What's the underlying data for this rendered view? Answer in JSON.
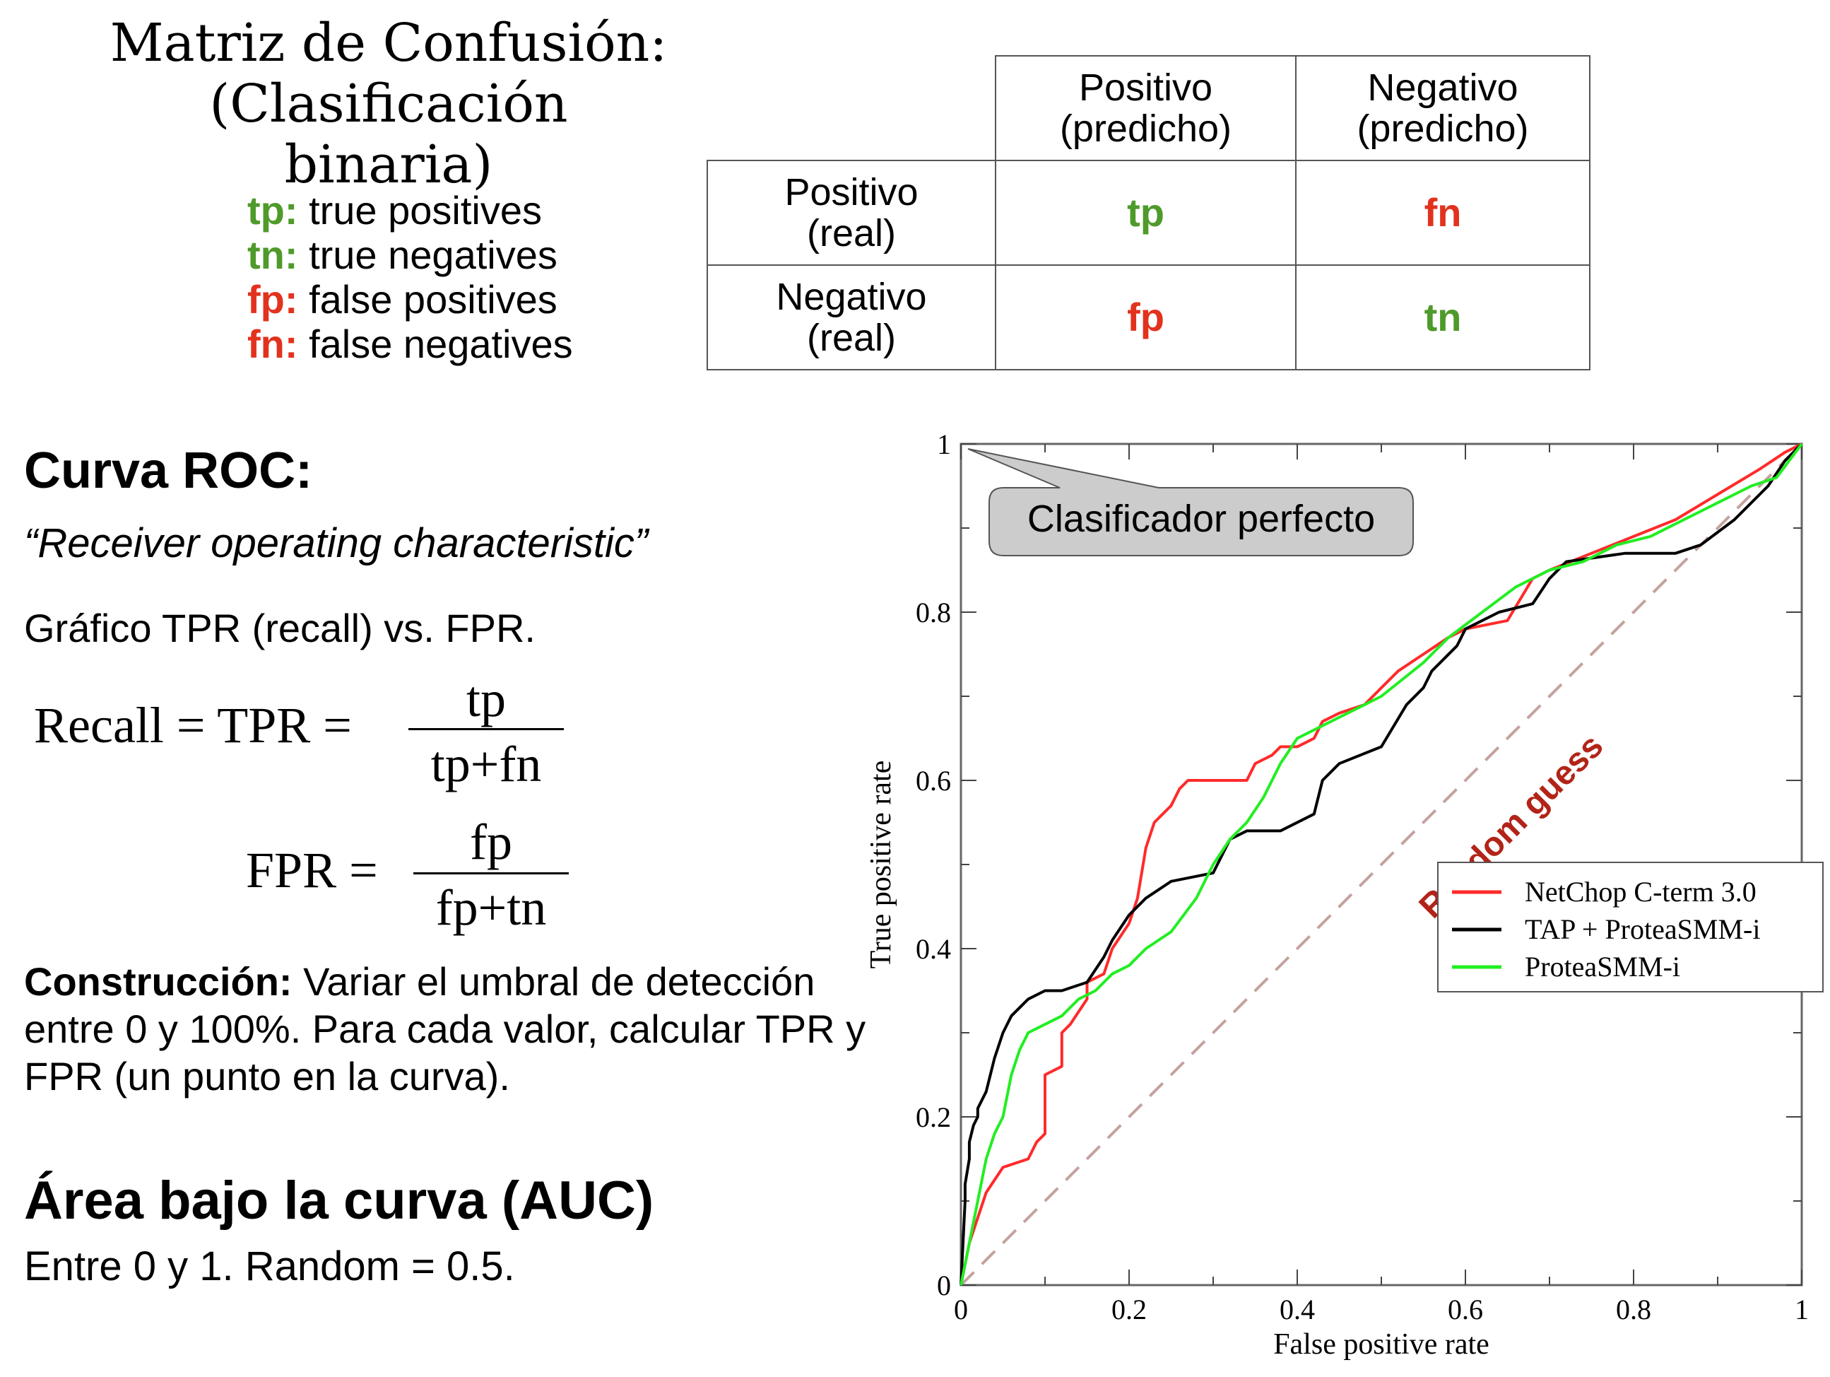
{
  "confusion": {
    "title_line1": "Matriz de Confusión:",
    "title_line2": "(Clasificación binaria)",
    "definitions": [
      {
        "abbr": "tp:",
        "text": " true positives",
        "color": "#4e9a2a"
      },
      {
        "abbr": "tn:",
        "text": " true negatives",
        "color": "#4e9a2a"
      },
      {
        "abbr": "fp:",
        "text": " false positives",
        "color": "#e2321e"
      },
      {
        "abbr": "fn:",
        "text": " false negatives",
        "color": "#e2321e"
      }
    ],
    "col_headers": [
      [
        "Positivo",
        "(predicho)"
      ],
      [
        "Negativo",
        "(predicho)"
      ]
    ],
    "row_headers": [
      [
        "Positivo",
        "(real)"
      ],
      [
        "Negativo",
        "(real)"
      ]
    ],
    "cells": [
      [
        "tp",
        "fn"
      ],
      [
        "fp",
        "tn"
      ]
    ]
  },
  "roc": {
    "heading": "Curva ROC:",
    "subtitle": "“Receiver operating characteristic”",
    "description": "Gráfico TPR (recall) vs. FPR.",
    "recall_formula": {
      "lhs": "Recall = TPR =",
      "num": "tp",
      "den": "tp+fn"
    },
    "fpr_formula": {
      "lhs": "FPR =",
      "num": "fp",
      "den": "fp+tn"
    },
    "construction_label": "Construcción:",
    "construction_text": "  Variar el umbral de detección entre 0 y 100%. Para cada valor, calcular TPR y FPR (un punto en la curva)."
  },
  "auc": {
    "heading": "Área bajo la curva (AUC)",
    "description": "Entre 0 y 1. Random = 0.5."
  },
  "chart_data": {
    "type": "line",
    "xlabel": "False positive rate",
    "ylabel": "True positive rate",
    "xlim": [
      0,
      1
    ],
    "ylim": [
      0,
      1
    ],
    "xticks": [
      "0",
      "0.2",
      "0.4",
      "0.6",
      "0.8",
      "1"
    ],
    "yticks": [
      "0",
      "0.2",
      "0.4",
      "0.6",
      "0.8",
      "1"
    ],
    "callout": "Clasificador perfecto",
    "diagonal_label": "Random guess",
    "legend_position": "right",
    "series": [
      {
        "name": "NetChop C-term 3.0",
        "color": "#ff2a2a",
        "x": [
          0,
          0.01,
          0.03,
          0.05,
          0.08,
          0.09,
          0.1,
          0.1,
          0.12,
          0.12,
          0.13,
          0.15,
          0.15,
          0.17,
          0.18,
          0.2,
          0.21,
          0.22,
          0.23,
          0.24,
          0.25,
          0.26,
          0.27,
          0.3,
          0.34,
          0.35,
          0.37,
          0.38,
          0.4,
          0.42,
          0.43,
          0.45,
          0.48,
          0.5,
          0.52,
          0.55,
          0.58,
          0.6,
          0.65,
          0.68,
          0.7,
          0.75,
          0.8,
          0.85,
          0.9,
          0.95,
          0.98,
          1
        ],
        "y": [
          0,
          0.05,
          0.11,
          0.14,
          0.15,
          0.17,
          0.18,
          0.25,
          0.26,
          0.3,
          0.31,
          0.34,
          0.36,
          0.37,
          0.4,
          0.43,
          0.46,
          0.52,
          0.55,
          0.56,
          0.57,
          0.59,
          0.6,
          0.6,
          0.6,
          0.62,
          0.63,
          0.64,
          0.64,
          0.65,
          0.67,
          0.68,
          0.69,
          0.71,
          0.73,
          0.75,
          0.77,
          0.78,
          0.79,
          0.84,
          0.85,
          0.87,
          0.89,
          0.91,
          0.94,
          0.97,
          0.99,
          1
        ]
      },
      {
        "name": "TAP + ProteaSMM-i",
        "color": "#000000",
        "x": [
          0,
          0.005,
          0.005,
          0.01,
          0.01,
          0.015,
          0.02,
          0.02,
          0.03,
          0.04,
          0.05,
          0.06,
          0.07,
          0.08,
          0.1,
          0.12,
          0.15,
          0.17,
          0.18,
          0.2,
          0.22,
          0.25,
          0.3,
          0.32,
          0.34,
          0.38,
          0.42,
          0.43,
          0.45,
          0.5,
          0.53,
          0.55,
          0.56,
          0.57,
          0.59,
          0.6,
          0.64,
          0.68,
          0.7,
          0.72,
          0.79,
          0.85,
          0.88,
          0.92,
          0.96,
          0.98,
          1
        ],
        "y": [
          0,
          0.1,
          0.12,
          0.15,
          0.17,
          0.19,
          0.2,
          0.21,
          0.23,
          0.27,
          0.3,
          0.32,
          0.33,
          0.34,
          0.35,
          0.35,
          0.36,
          0.39,
          0.41,
          0.44,
          0.46,
          0.48,
          0.49,
          0.53,
          0.54,
          0.54,
          0.56,
          0.6,
          0.62,
          0.64,
          0.69,
          0.71,
          0.73,
          0.74,
          0.76,
          0.78,
          0.8,
          0.81,
          0.84,
          0.86,
          0.87,
          0.87,
          0.88,
          0.91,
          0.95,
          0.98,
          1
        ]
      },
      {
        "name": "ProteaSMM-i",
        "color": "#22ee22",
        "x": [
          0,
          0.01,
          0.02,
          0.03,
          0.04,
          0.05,
          0.06,
          0.07,
          0.08,
          0.1,
          0.12,
          0.14,
          0.16,
          0.18,
          0.2,
          0.22,
          0.25,
          0.28,
          0.3,
          0.32,
          0.34,
          0.36,
          0.38,
          0.4,
          0.44,
          0.48,
          0.5,
          0.55,
          0.58,
          0.62,
          0.66,
          0.7,
          0.74,
          0.78,
          0.82,
          0.86,
          0.9,
          0.94,
          0.97,
          1
        ],
        "y": [
          0,
          0.05,
          0.1,
          0.15,
          0.18,
          0.2,
          0.25,
          0.28,
          0.3,
          0.31,
          0.32,
          0.34,
          0.35,
          0.37,
          0.38,
          0.4,
          0.42,
          0.46,
          0.5,
          0.53,
          0.55,
          0.58,
          0.62,
          0.65,
          0.67,
          0.69,
          0.7,
          0.74,
          0.77,
          0.8,
          0.83,
          0.85,
          0.86,
          0.88,
          0.89,
          0.91,
          0.93,
          0.95,
          0.96,
          1
        ]
      }
    ]
  }
}
